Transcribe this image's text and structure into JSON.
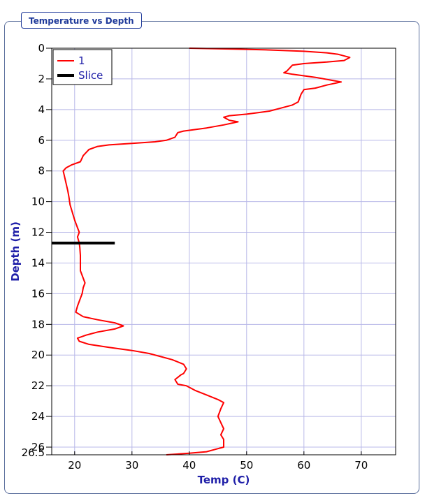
{
  "panel": {
    "title": "Temperature vs Depth"
  },
  "chart_data": {
    "type": "line",
    "xlabel": "Temp (C)",
    "ylabel": "Depth (m)",
    "xlim": [
      16,
      76
    ],
    "ylim": [
      26.5,
      0
    ],
    "x_ticks": [
      "20",
      "30",
      "40",
      "50",
      "60",
      "70"
    ],
    "x_tick_values": [
      20,
      30,
      40,
      50,
      60,
      70
    ],
    "y_ticks": [
      "0",
      "2",
      "4",
      "6",
      "8",
      "10",
      "12",
      "14",
      "16",
      "18",
      "20",
      "22",
      "24",
      "26",
      "26.5"
    ],
    "y_tick_values": [
      0,
      2,
      4,
      6,
      8,
      10,
      12,
      14,
      16,
      18,
      20,
      22,
      24,
      26,
      26.5
    ],
    "grid": true,
    "legend_position": "top-left",
    "colors": {
      "series_1": "#ff0000",
      "slice": "#000000",
      "grid": "#b8b8e8",
      "axis_title": "#1f1fa8"
    },
    "series": [
      {
        "name": "1",
        "points": [
          [
            40,
            0
          ],
          [
            47,
            0.05
          ],
          [
            53,
            0.1
          ],
          [
            60,
            0.2
          ],
          [
            64,
            0.3
          ],
          [
            66,
            0.4
          ],
          [
            68,
            0.6
          ],
          [
            67,
            0.8
          ],
          [
            64,
            0.9
          ],
          [
            60,
            1.0
          ],
          [
            58,
            1.1
          ],
          [
            57.5,
            1.3
          ],
          [
            57,
            1.5
          ],
          [
            56.5,
            1.6
          ],
          [
            58,
            1.7
          ],
          [
            62,
            1.9
          ],
          [
            65,
            2.1
          ],
          [
            66.5,
            2.2
          ],
          [
            64,
            2.4
          ],
          [
            62,
            2.6
          ],
          [
            60,
            2.7
          ],
          [
            59.5,
            3.0
          ],
          [
            59,
            3.5
          ],
          [
            58,
            3.7
          ],
          [
            56,
            3.9
          ],
          [
            54,
            4.1
          ],
          [
            52,
            4.2
          ],
          [
            50,
            4.3
          ],
          [
            47,
            4.4
          ],
          [
            46,
            4.5
          ],
          [
            47,
            4.7
          ],
          [
            48.5,
            4.8
          ],
          [
            46,
            5.0
          ],
          [
            43,
            5.2
          ],
          [
            39,
            5.4
          ],
          [
            38,
            5.5
          ],
          [
            37.5,
            5.8
          ],
          [
            36,
            6.0
          ],
          [
            34,
            6.1
          ],
          [
            30,
            6.2
          ],
          [
            26,
            6.3
          ],
          [
            24,
            6.4
          ],
          [
            22.5,
            6.6
          ],
          [
            22,
            6.8
          ],
          [
            21.5,
            7.0
          ],
          [
            21,
            7.4
          ],
          [
            19.5,
            7.6
          ],
          [
            18.5,
            7.8
          ],
          [
            18,
            8.0
          ],
          [
            18.2,
            8.3
          ],
          [
            18.5,
            8.8
          ],
          [
            18.8,
            9.3
          ],
          [
            19,
            9.7
          ],
          [
            19.2,
            10.2
          ],
          [
            19.6,
            10.7
          ],
          [
            20,
            11.2
          ],
          [
            20.5,
            11.7
          ],
          [
            20.8,
            12.0
          ],
          [
            20.5,
            12.3
          ],
          [
            20.8,
            12.7
          ],
          [
            20.9,
            13.0
          ],
          [
            21,
            13.5
          ],
          [
            21,
            14.0
          ],
          [
            21,
            14.5
          ],
          [
            21.5,
            15.0
          ],
          [
            21.8,
            15.3
          ],
          [
            21.5,
            15.6
          ],
          [
            21.3,
            16.0
          ],
          [
            21,
            16.3
          ],
          [
            20.5,
            16.8
          ],
          [
            20.2,
            17.2
          ],
          [
            21.5,
            17.5
          ],
          [
            24,
            17.7
          ],
          [
            27,
            17.9
          ],
          [
            28.5,
            18.1
          ],
          [
            27,
            18.3
          ],
          [
            24,
            18.5
          ],
          [
            22,
            18.7
          ],
          [
            20.5,
            18.9
          ],
          [
            20.8,
            19.1
          ],
          [
            22.5,
            19.3
          ],
          [
            26,
            19.5
          ],
          [
            28,
            19.6
          ],
          [
            30,
            19.7
          ],
          [
            33,
            19.9
          ],
          [
            35,
            20.1
          ],
          [
            37,
            20.3
          ],
          [
            39,
            20.6
          ],
          [
            39.5,
            20.9
          ],
          [
            39,
            21.2
          ],
          [
            38.5,
            21.3
          ],
          [
            37.5,
            21.6
          ],
          [
            38,
            21.9
          ],
          [
            39.5,
            22.0
          ],
          [
            41,
            22.3
          ],
          [
            43,
            22.6
          ],
          [
            45,
            22.9
          ],
          [
            46,
            23.1
          ],
          [
            45.5,
            23.5
          ],
          [
            45,
            24.0
          ],
          [
            45.5,
            24.4
          ],
          [
            46,
            24.8
          ],
          [
            45.5,
            25.2
          ],
          [
            46,
            25.5
          ],
          [
            46,
            25.7
          ],
          [
            46,
            26.0
          ],
          [
            45,
            26.1
          ],
          [
            43,
            26.3
          ],
          [
            40,
            26.4
          ],
          [
            36,
            26.5
          ]
        ]
      },
      {
        "name": "Slice",
        "points": [
          [
            16,
            12.7
          ],
          [
            27,
            12.7
          ]
        ]
      }
    ]
  }
}
